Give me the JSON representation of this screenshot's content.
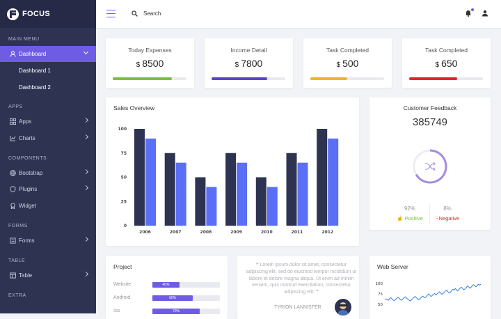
{
  "brand": {
    "name": "FOCUS"
  },
  "sidebar": {
    "sections": {
      "main": "MAIN MENU",
      "apps": "APPS",
      "components": "COMPONENTS",
      "forms": "FORMS",
      "table": "TABLE",
      "extra": "EXTRA"
    },
    "dashboard": {
      "label": "Dashboard",
      "icon": "user-icon"
    },
    "dashboard_subs": [
      "Dashboard 1",
      "Dashboard 2"
    ],
    "apps": {
      "label": "Apps",
      "icon": "grid-icon"
    },
    "charts": {
      "label": "Charts",
      "icon": "chart-icon"
    },
    "bootstrap": {
      "label": "Bootstrap",
      "icon": "globe-icon"
    },
    "plugins": {
      "label": "Plugins",
      "icon": "shield-icon"
    },
    "widget": {
      "label": "Widget",
      "icon": "badge-icon"
    },
    "forms": {
      "label": "Forms",
      "icon": "form-icon"
    },
    "table": {
      "label": "Table",
      "icon": "table-icon"
    }
  },
  "topbar": {
    "search_label": "Search"
  },
  "stats": [
    {
      "label": "Today Expenses",
      "currency": "$",
      "value": "8500",
      "progress": 0.8,
      "color": "#7ac142"
    },
    {
      "label": "Income Detail",
      "currency": "$",
      "value": "7800",
      "progress": 0.75,
      "color": "#5b45c8"
    },
    {
      "label": "Task Completed",
      "currency": "$",
      "value": "500",
      "progress": 0.5,
      "color": "#f0b429"
    },
    {
      "label": "Task Completed",
      "currency": "$",
      "value": "650",
      "progress": 0.65,
      "color": "#e0262b"
    }
  ],
  "sales": {
    "title": "Sales Overview",
    "chart_data": {
      "type": "bar",
      "categories": [
        "2006",
        "2007",
        "2008",
        "2009",
        "2010",
        "2011",
        "2012"
      ],
      "series": [
        {
          "values": [
            100,
            75,
            50,
            75,
            50,
            75,
            100
          ],
          "color": "#2e3352"
        },
        {
          "values": [
            90,
            65,
            40,
            65,
            40,
            65,
            90
          ],
          "color": "#5a6ff5"
        }
      ],
      "yticks": [
        0,
        25,
        50,
        75,
        100
      ],
      "ylim": [
        0,
        100
      ]
    }
  },
  "feedback": {
    "title": "Customer Feedback",
    "value": "385749",
    "icon": "shuffle-icon",
    "positive": {
      "pct": "92%",
      "label": "Positive",
      "color": "#7ac142"
    },
    "negative": {
      "pct": "8%",
      "label": "Negative",
      "color": "#e0262b"
    }
  },
  "project": {
    "title": "Project",
    "rows": [
      {
        "label": "Website",
        "pct": 40,
        "text": "40%"
      },
      {
        "label": "Android",
        "pct": 60,
        "text": "60%"
      },
      {
        "label": "Ios",
        "pct": 70,
        "text": "70%"
      }
    ]
  },
  "testimonial": {
    "text": "Lorem ipsum dolor sit amet, consectetur adipiscing elit, sed do eiusmod tempor incididunt ut labore et dolore magna aliqua. Ut enim ad minim veniam, quis nostrud exercitation, consectetur adipiscing elit.",
    "author": "TYRION LANNISTER"
  },
  "webserver": {
    "title": "Web Server",
    "chart_data": {
      "type": "line",
      "yticks": [
        50,
        75,
        100
      ],
      "ylim": [
        45,
        105
      ],
      "values": [
        62,
        63,
        61,
        60,
        64,
        66,
        63,
        60,
        59,
        62,
        65,
        67,
        64,
        61,
        60,
        63,
        66,
        68,
        65,
        62,
        60,
        58,
        61,
        64,
        67,
        69,
        66,
        63,
        61,
        64,
        67,
        70,
        68,
        66,
        68,
        72,
        75,
        72,
        69,
        71,
        74,
        76,
        73,
        75,
        78,
        80,
        77,
        74,
        76,
        79,
        82,
        84,
        80,
        77,
        79,
        83,
        86,
        84,
        88,
        85,
        82,
        86,
        89,
        91,
        88,
        85,
        87,
        90,
        94,
        92,
        89,
        91,
        95,
        97,
        94,
        92,
        95,
        98,
        96,
        98
      ]
    }
  }
}
